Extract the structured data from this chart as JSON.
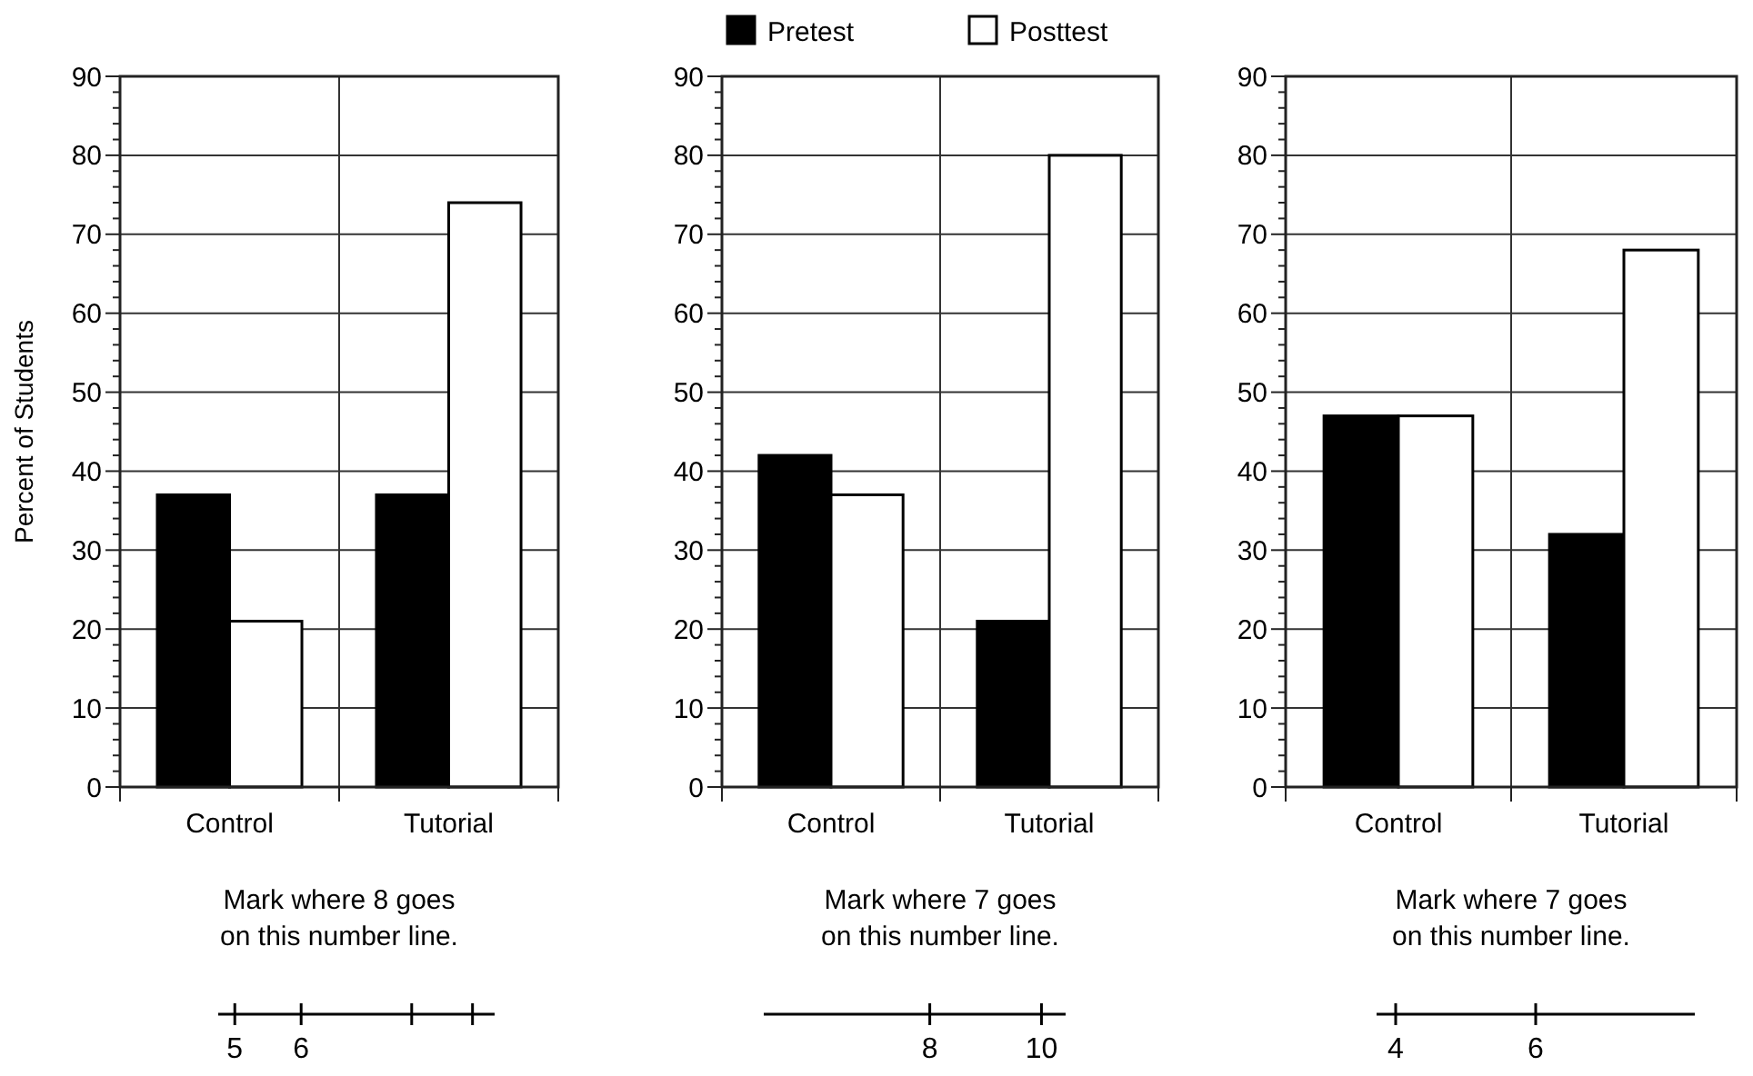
{
  "chart_data": [
    {
      "type": "bar",
      "ylabel": "Percent of Students",
      "categories": [
        "Control",
        "Tutorial"
      ],
      "series": [
        {
          "color": "#000000",
          "values": [
            37,
            37
          ]
        },
        {
          "color": "#ffffff",
          "values": [
            21,
            74
          ]
        }
      ],
      "ylim": [
        0,
        90
      ],
      "yticks": [
        0,
        {
          "value": 2,
          "label": null
        },
        {
          "value": 4,
          "label": null
        },
        {
          "value": 6,
          "label": null
        },
        {
          "value": 8,
          "label": null
        },
        10,
        {
          "value": 12,
          "label": null
        },
        {
          "value": 14,
          "label": null
        },
        {
          "value": 16,
          "label": null
        },
        {
          "value": 18,
          "label": null
        },
        20,
        {
          "value": 22,
          "label": null
        },
        {
          "value": 24,
          "label": null
        },
        {
          "value": 26,
          "label": null
        },
        {
          "value": 28,
          "label": null
        },
        30,
        {
          "value": 32,
          "label": null
        },
        {
          "value": 34,
          "label": null
        },
        {
          "value": 36,
          "label": null
        },
        {
          "value": 38,
          "label": null
        },
        40,
        {
          "value": 42,
          "label": null
        },
        {
          "value": 44,
          "label": null
        },
        {
          "value": 46,
          "label": null
        },
        {
          "value": 48,
          "label": null
        },
        50,
        {
          "value": 52,
          "label": null
        },
        {
          "value": 54,
          "label": null
        },
        {
          "value": 56,
          "label": null
        },
        {
          "value": 58,
          "label": null
        },
        60,
        {
          "value": 62,
          "label": null
        },
        {
          "value": 64,
          "label": null
        },
        {
          "value": 66,
          "label": null
        },
        {
          "value": 68,
          "label": null
        },
        70,
        {
          "value": 72,
          "label": null
        },
        {
          "value": 74,
          "label": null
        },
        {
          "value": 76,
          "label": null
        },
        {
          "value": 78,
          "label": null
        },
        80,
        {
          "value": 82,
          "label": null
        },
        {
          "value": 84,
          "label": null
        },
        {
          "value": 86,
          "label": null
        },
        {
          "value": 88,
          "label": null
        },
        90
      ],
      "grid": true,
      "annotations": [
        "Mark where 8 goes\non this number line.",
        "5",
        "6"
      ]
    },
    {
      "type": "bar",
      "categories": [
        "Control",
        "Tutorial"
      ],
      "series": [
        {
          "name": "Pretest",
          "color": "#000000",
          "values": [
            42,
            21
          ]
        },
        {
          "name": "Posttest",
          "color": "#ffffff",
          "values": [
            37,
            80
          ]
        }
      ],
      "ylim": [
        0,
        90
      ],
      "yticks": [
        0,
        {
          "value": 2,
          "label": null
        },
        {
          "value": 4,
          "label": null
        },
        {
          "value": 6,
          "label": null
        },
        {
          "value": 8,
          "label": null
        },
        10,
        {
          "value": 12,
          "label": null
        },
        {
          "value": 14,
          "label": null
        },
        {
          "value": 16,
          "label": null
        },
        {
          "value": 18,
          "label": null
        },
        20,
        {
          "value": 22,
          "label": null
        },
        {
          "value": 24,
          "label": null
        },
        {
          "value": 26,
          "label": null
        },
        {
          "value": 28,
          "label": null
        },
        30,
        {
          "value": 32,
          "label": null
        },
        {
          "value": 34,
          "label": null
        },
        {
          "value": 36,
          "label": null
        },
        {
          "value": 38,
          "label": null
        },
        40,
        {
          "value": 42,
          "label": null
        },
        {
          "value": 44,
          "label": null
        },
        {
          "value": 46,
          "label": null
        },
        {
          "value": 48,
          "label": null
        },
        50,
        {
          "value": 52,
          "label": null
        },
        {
          "value": 54,
          "label": null
        },
        {
          "value": 56,
          "label": null
        },
        {
          "value": 58,
          "label": null
        },
        60,
        {
          "value": 62,
          "label": null
        },
        {
          "value": 64,
          "label": null
        },
        {
          "value": 66,
          "label": null
        },
        {
          "value": 68,
          "label": null
        },
        70,
        {
          "value": 72,
          "label": null
        },
        {
          "value": 74,
          "label": null
        },
        {
          "value": 76,
          "label": null
        },
        {
          "value": 78,
          "label": null
        },
        80,
        {
          "value": 82,
          "label": null
        },
        {
          "value": 84,
          "label": null
        },
        {
          "value": 86,
          "label": null
        },
        {
          "value": 88,
          "label": null
        },
        90
      ],
      "grid": true,
      "legend": "top",
      "annotations": [
        "Mark where 7 goes\non this number line.",
        "8",
        "10"
      ]
    },
    {
      "type": "bar",
      "categories": [
        "Control",
        "Tutorial"
      ],
      "series": [
        {
          "color": "#000000",
          "values": [
            47,
            32
          ]
        },
        {
          "color": "#ffffff",
          "values": [
            47,
            68
          ]
        }
      ],
      "ylim": [
        0,
        90
      ],
      "yticks": [
        0,
        {
          "value": 2,
          "label": null
        },
        {
          "value": 4,
          "label": null
        },
        {
          "value": 6,
          "label": null
        },
        {
          "value": 8,
          "label": null
        },
        10,
        {
          "value": 12,
          "label": null
        },
        {
          "value": 14,
          "label": null
        },
        {
          "value": 16,
          "label": null
        },
        {
          "value": 18,
          "label": null
        },
        20,
        {
          "value": 22,
          "label": null
        },
        {
          "value": 24,
          "label": null
        },
        {
          "value": 26,
          "label": null
        },
        {
          "value": 28,
          "label": null
        },
        30,
        {
          "value": 32,
          "label": null
        },
        {
          "value": 34,
          "label": null
        },
        {
          "value": 36,
          "label": null
        },
        {
          "value": 38,
          "label": null
        },
        40,
        {
          "value": 42,
          "label": null
        },
        {
          "value": 44,
          "label": null
        },
        {
          "value": 46,
          "label": null
        },
        {
          "value": 48,
          "label": null
        },
        50,
        {
          "value": 52,
          "label": null
        },
        {
          "value": 54,
          "label": null
        },
        {
          "value": 56,
          "label": null
        },
        {
          "value": 58,
          "label": null
        },
        60,
        {
          "value": 62,
          "label": null
        },
        {
          "value": 64,
          "label": null
        },
        {
          "value": 66,
          "label": null
        },
        {
          "value": 68,
          "label": null
        },
        70,
        {
          "value": 72,
          "label": null
        },
        {
          "value": 74,
          "label": null
        },
        {
          "value": 76,
          "label": null
        },
        {
          "value": 78,
          "label": null
        },
        80,
        {
          "value": 82,
          "label": null
        },
        {
          "value": 84,
          "label": null
        },
        {
          "value": 86,
          "label": null
        },
        {
          "value": 88,
          "label": null
        },
        90
      ],
      "grid": true,
      "annotations": [
        "Mark where 7 goes\non this number line.",
        "4",
        "6"
      ]
    }
  ]
}
